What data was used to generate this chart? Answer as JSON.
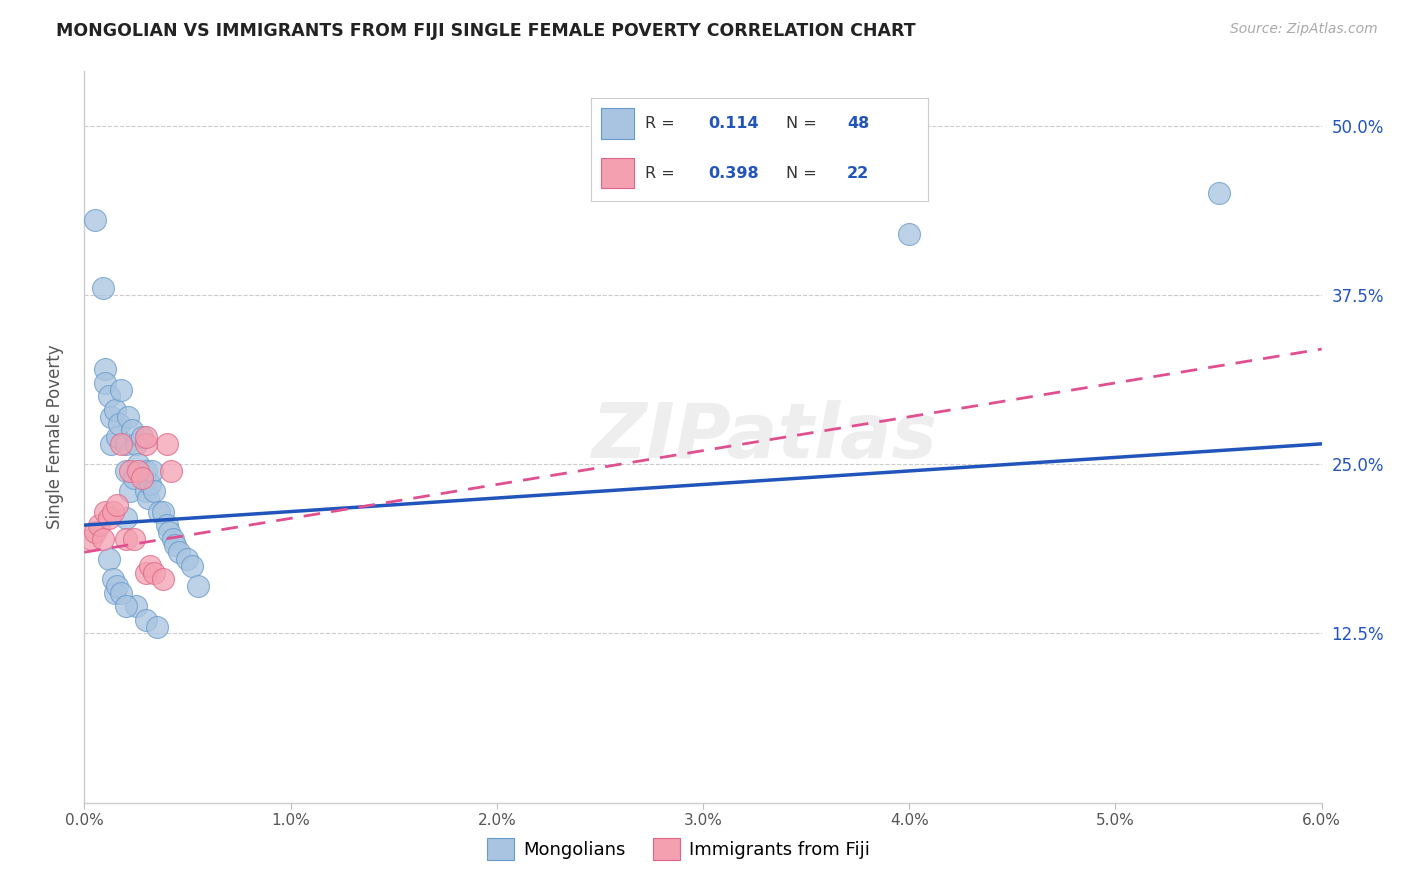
{
  "title": "MONGOLIAN VS IMMIGRANTS FROM FIJI SINGLE FEMALE POVERTY CORRELATION CHART",
  "source": "Source: ZipAtlas.com",
  "ylabel": "Single Female Poverty",
  "xlim": [
    0.0,
    0.06
  ],
  "ylim": [
    0.0,
    0.54
  ],
  "xtick_vals": [
    0.0,
    0.01,
    0.02,
    0.03,
    0.04,
    0.05,
    0.06
  ],
  "ytick_vals": [
    0.125,
    0.25,
    0.375,
    0.5
  ],
  "blue_color": "#a8c4e0",
  "pink_color": "#f4a0b0",
  "blue_line_color": "#2255bb",
  "pink_line_color": "#e05090",
  "watermark": "ZIPatlas",
  "legend_label_blue": "Mongolians",
  "legend_label_pink": "Immigrants from Fiji",
  "r_blue_text": "0.114",
  "n_blue_text": "48",
  "r_pink_text": "0.398",
  "n_pink_text": "22",
  "blue_line_x0": 0.0,
  "blue_line_y0": 0.205,
  "blue_line_x1": 0.06,
  "blue_line_y1": 0.265,
  "pink_line_x0": 0.0,
  "pink_line_y0": 0.185,
  "pink_line_x1": 0.06,
  "pink_line_y1": 0.335,
  "mongolian_x": [
    0.0005,
    0.001,
    0.001,
    0.0012,
    0.0013,
    0.0013,
    0.0015,
    0.0016,
    0.0017,
    0.0018,
    0.002,
    0.002,
    0.0021,
    0.0022,
    0.0023,
    0.0024,
    0.0025,
    0.0026,
    0.0028,
    0.003,
    0.003,
    0.0031,
    0.0032,
    0.0033,
    0.0034,
    0.0036,
    0.0038,
    0.004,
    0.0041,
    0.0043,
    0.0044,
    0.0046,
    0.005,
    0.0052,
    0.0055,
    0.002,
    0.0015,
    0.0025,
    0.003,
    0.0035,
    0.0012,
    0.0014,
    0.0016,
    0.0018,
    0.002,
    0.04,
    0.055,
    0.0009
  ],
  "mongolian_y": [
    0.43,
    0.32,
    0.31,
    0.3,
    0.285,
    0.265,
    0.29,
    0.27,
    0.28,
    0.305,
    0.265,
    0.245,
    0.285,
    0.23,
    0.275,
    0.24,
    0.265,
    0.25,
    0.27,
    0.23,
    0.245,
    0.225,
    0.235,
    0.245,
    0.23,
    0.215,
    0.215,
    0.205,
    0.2,
    0.195,
    0.19,
    0.185,
    0.18,
    0.175,
    0.16,
    0.21,
    0.155,
    0.145,
    0.135,
    0.13,
    0.18,
    0.165,
    0.16,
    0.155,
    0.145,
    0.42,
    0.45,
    0.38
  ],
  "fiji_x": [
    0.0003,
    0.0005,
    0.0007,
    0.0009,
    0.001,
    0.0012,
    0.0014,
    0.0016,
    0.0018,
    0.002,
    0.0022,
    0.0024,
    0.0026,
    0.0028,
    0.003,
    0.0032,
    0.0034,
    0.0038,
    0.004,
    0.0042,
    0.003,
    0.003
  ],
  "fiji_y": [
    0.195,
    0.2,
    0.205,
    0.195,
    0.215,
    0.21,
    0.215,
    0.22,
    0.265,
    0.195,
    0.245,
    0.195,
    0.245,
    0.24,
    0.17,
    0.175,
    0.17,
    0.165,
    0.265,
    0.245,
    0.265,
    0.27
  ]
}
